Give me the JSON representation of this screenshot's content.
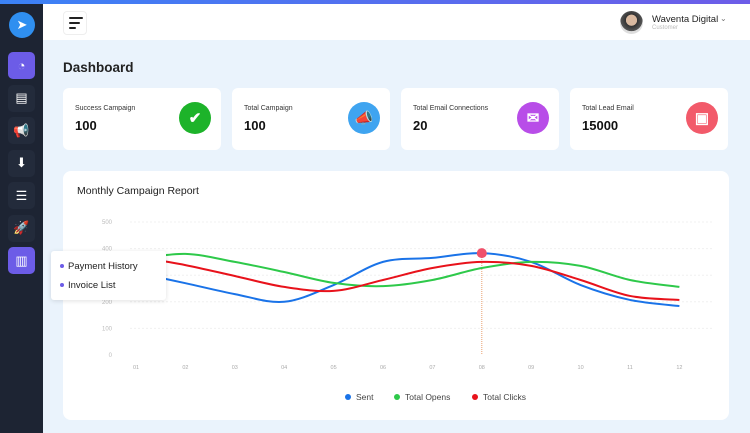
{
  "header": {
    "user_name": "Waventa Digital",
    "user_role": "Customer"
  },
  "page_title": "Dashboard",
  "sidebar": {
    "items": [
      {
        "name": "dashboard",
        "icon": "pie-chart-icon",
        "active": true
      },
      {
        "name": "messages",
        "icon": "chat-icon"
      },
      {
        "name": "campaigns",
        "icon": "megaphone-icon"
      },
      {
        "name": "inbox",
        "icon": "inbox-icon"
      },
      {
        "name": "lists",
        "icon": "checklist-icon"
      },
      {
        "name": "launch",
        "icon": "rocket-icon"
      },
      {
        "name": "billing",
        "icon": "receipt-icon",
        "active": true
      }
    ]
  },
  "popup": {
    "items": [
      "Payment History",
      "Invoice List"
    ]
  },
  "cards": [
    {
      "label": "Success Campaign",
      "value": "100",
      "icon": "check-icon",
      "color": "#1db32a"
    },
    {
      "label": "Total Campaign",
      "value": "100",
      "icon": "megaphone-icon",
      "color": "#3fa4f0"
    },
    {
      "label": "Total Email Connections",
      "value": "20",
      "icon": "envelope-icon",
      "color": "#b84de8"
    },
    {
      "label": "Total Lead Email",
      "value": "15000",
      "icon": "document-icon",
      "color": "#f25a6a"
    }
  ],
  "chart_data": {
    "type": "line",
    "title": "Monthly Campaign Report",
    "categories": [
      "01",
      "02",
      "03",
      "04",
      "05",
      "06",
      "07",
      "08",
      "09",
      "10",
      "11",
      "12"
    ],
    "yticks": [
      "0",
      "100",
      "200",
      "300",
      "400",
      "500"
    ],
    "ylim": [
      0,
      500
    ],
    "grid": true,
    "legend": "bottom",
    "highlight": {
      "category": "08",
      "series": "Sent"
    },
    "series": [
      {
        "name": "Sent",
        "color": "#1a73e8",
        "values": [
          310,
          270,
          229,
          200,
          263,
          350,
          365,
          383,
          350,
          263,
          207,
          184
        ]
      },
      {
        "name": "Total Opens",
        "color": "#2ec94a",
        "values": [
          360,
          380,
          350,
          312,
          271,
          259,
          282,
          327,
          350,
          335,
          282,
          256
        ]
      },
      {
        "name": "Total Clicks",
        "color": "#e8121b",
        "values": [
          370,
          338,
          297,
          256,
          241,
          282,
          327,
          350,
          335,
          282,
          222,
          207
        ]
      }
    ]
  }
}
